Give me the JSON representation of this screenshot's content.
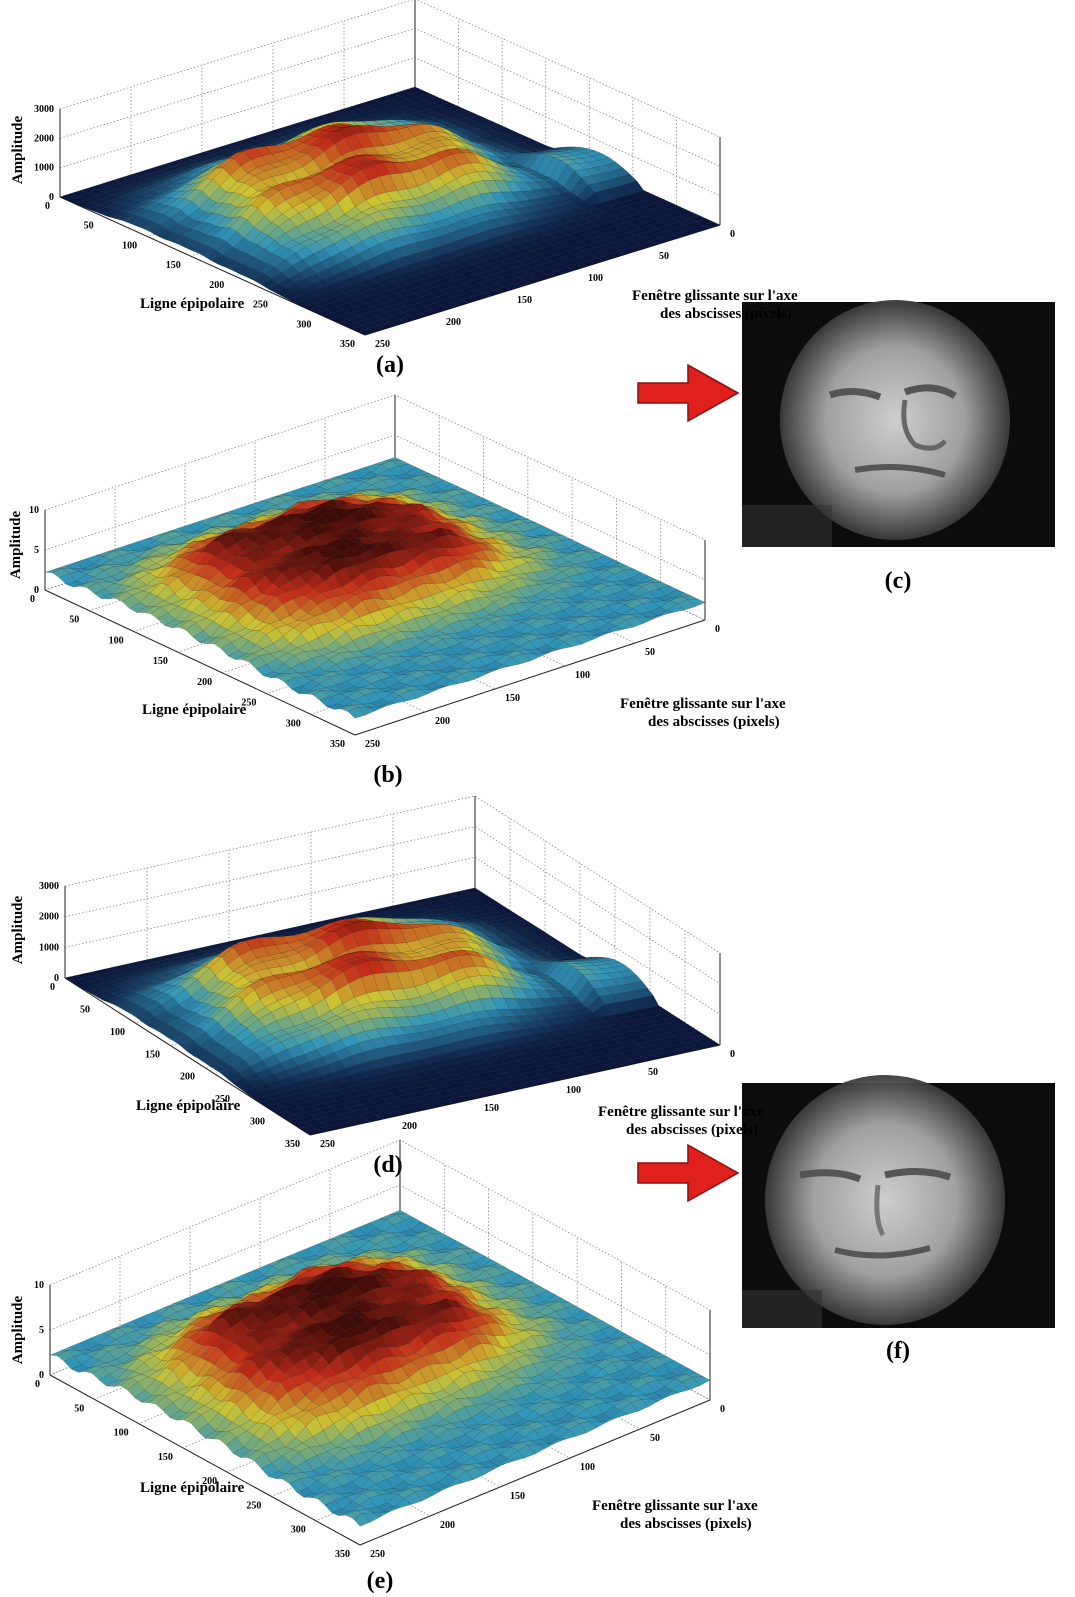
{
  "panels": [
    {
      "label": "(a)",
      "z_label": "Amplitude",
      "x_label": "Ligne épipolaire",
      "y_label_lines": [
        "Fenêtre glissante sur l'axe",
        "des abscisses (pixels)"
      ],
      "z_ticks": [
        0,
        1000,
        2000,
        3000
      ],
      "x_ticks": [
        0,
        50,
        100,
        150,
        200,
        250,
        300,
        350
      ],
      "y_ticks": [
        0,
        50,
        100,
        150,
        200,
        250
      ]
    },
    {
      "label": "(b)",
      "z_label": "Amplitude",
      "x_label": "Ligne épipolaire",
      "y_label_lines": [
        "Fenêtre glissante sur l'axe",
        "des abscisses (pixels)"
      ],
      "z_ticks": [
        0,
        5,
        10
      ],
      "x_ticks": [
        0,
        50,
        100,
        150,
        200,
        250,
        300,
        350
      ],
      "y_ticks": [
        0,
        50,
        100,
        150,
        200,
        250
      ]
    },
    {
      "label": "(d)",
      "z_label": "Amplitude",
      "x_label": "Ligne épipolaire",
      "y_label_lines": [
        "Fenêtre glissante sur l'axe",
        "des abscisses (pixels)"
      ],
      "z_ticks": [
        0,
        1000,
        2000,
        3000
      ],
      "x_ticks": [
        0,
        50,
        100,
        150,
        200,
        250,
        300,
        350
      ],
      "y_ticks": [
        0,
        50,
        100,
        150,
        200,
        250
      ]
    },
    {
      "label": "(e)",
      "z_label": "Amplitude",
      "x_label": "Ligne épipolaire",
      "y_label_lines": [
        "Fenêtre glissante sur l'axe",
        "des abscisses (pixels)"
      ],
      "z_ticks": [
        0,
        5,
        10
      ],
      "x_ticks": [
        0,
        50,
        100,
        150,
        200,
        250,
        300,
        350
      ],
      "y_ticks": [
        0,
        50,
        100,
        150,
        200,
        250
      ]
    }
  ],
  "images": [
    {
      "label": "(c)"
    },
    {
      "label": "(f)"
    }
  ]
}
